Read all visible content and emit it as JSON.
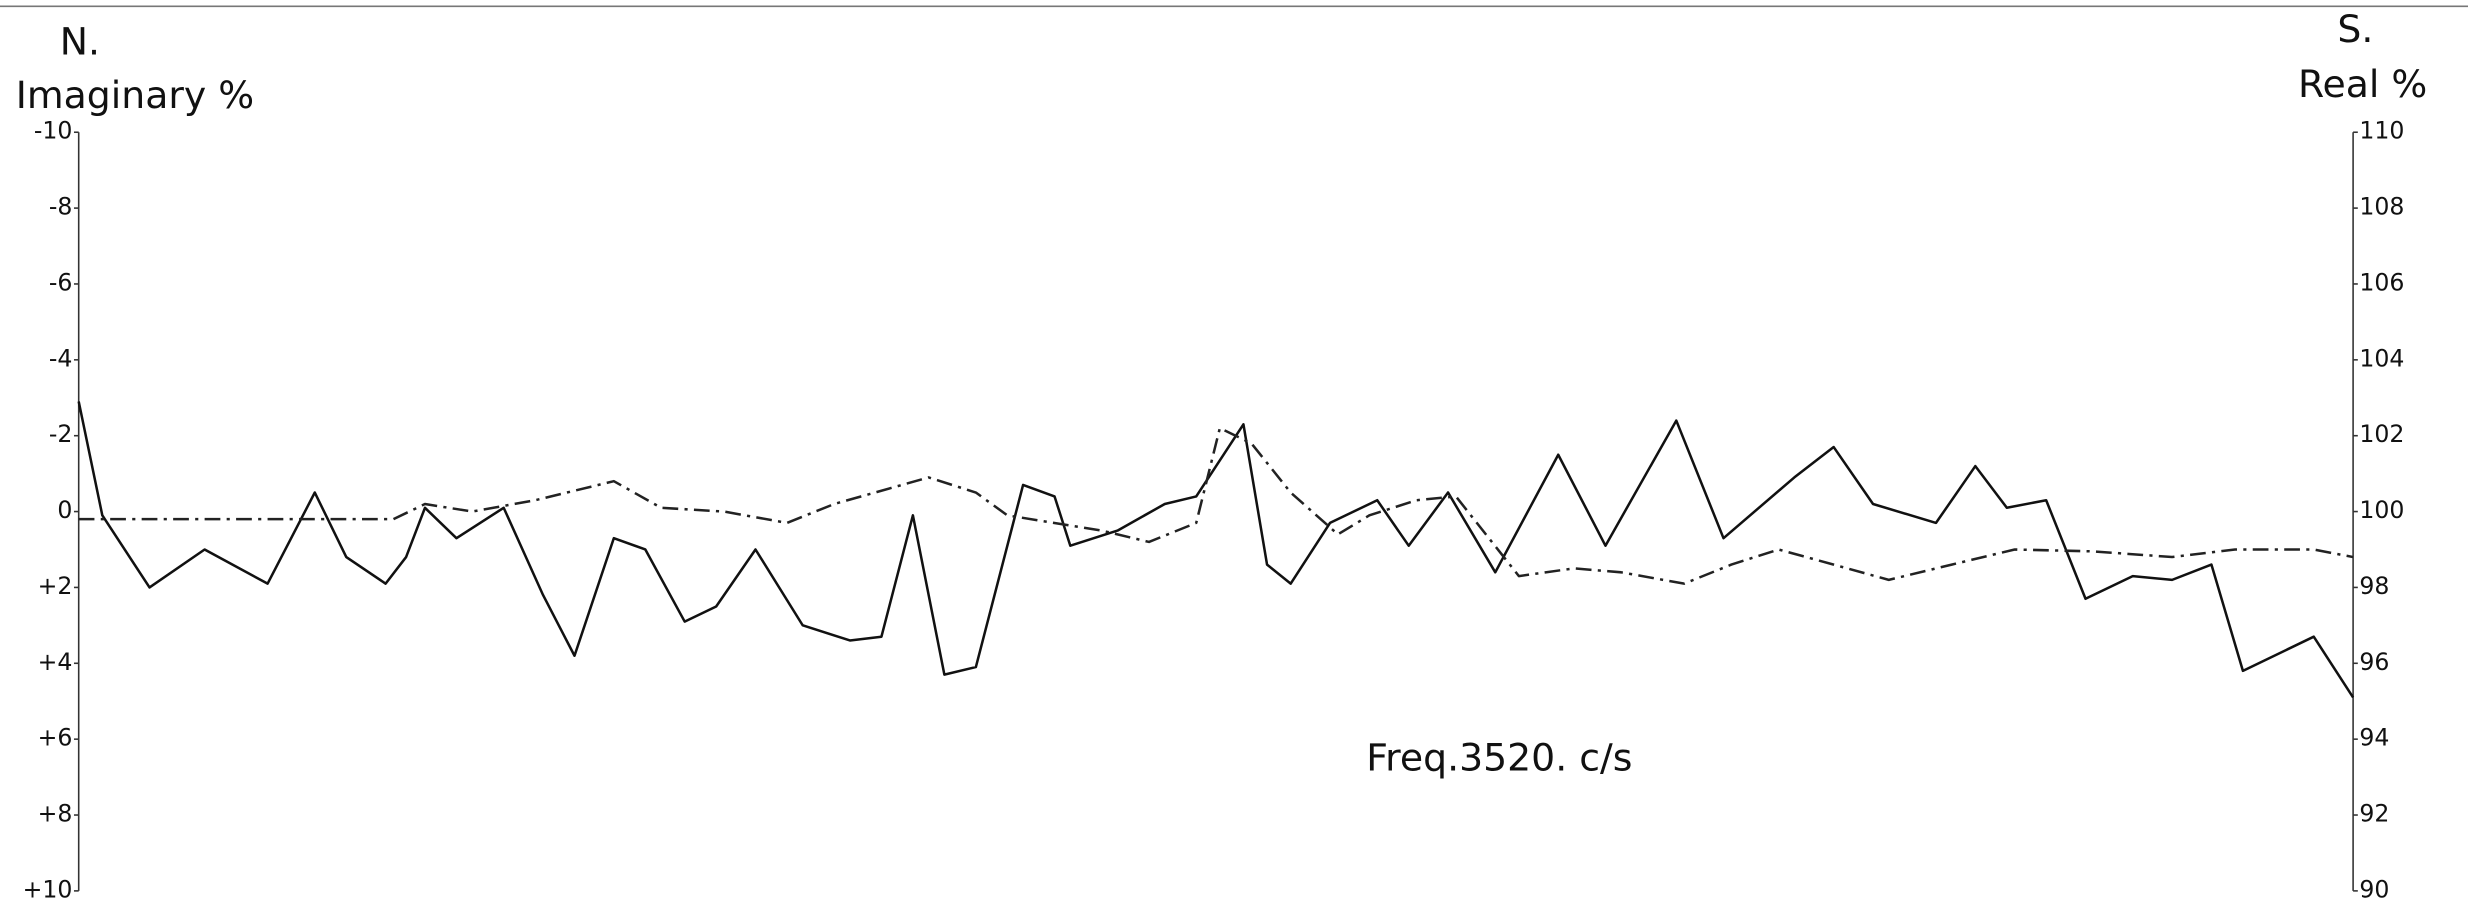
{
  "chart_data": {
    "type": "line",
    "labels": {
      "left_top": "N.",
      "right_top": "S."
    },
    "ylabel": "Imaginary %",
    "y2label": "Real %",
    "annotation": "Freq.3520. c/s",
    "xlim": [
      0,
      1445
    ],
    "ylim": [
      -10,
      10
    ],
    "yinverted": true,
    "yticks": [
      -10,
      -8,
      -6,
      -4,
      -2,
      0,
      {
        "value": 2,
        "label": "+2"
      },
      {
        "value": 4,
        "label": "+4"
      },
      {
        "value": 6,
        "label": "+6"
      },
      {
        "value": 8,
        "label": "+8"
      },
      {
        "value": 10,
        "label": "+10"
      }
    ],
    "y2lim": [
      90,
      110
    ],
    "y2ticks": [
      90,
      92,
      94,
      96,
      98,
      100,
      102,
      104,
      106,
      108,
      110
    ],
    "grid": false,
    "series": [
      {
        "color": "#111111",
        "linestyle": "solid",
        "x": [
          0,
          15,
          45,
          80,
          120,
          150,
          170,
          195,
          208,
          220,
          240,
          270,
          295,
          315,
          340,
          360,
          385,
          405,
          430,
          460,
          490,
          510,
          530,
          550,
          570,
          600,
          620,
          630,
          660,
          690,
          710,
          740,
          755,
          770,
          795,
          825,
          845,
          870,
          900,
          940,
          970,
          1015,
          1045,
          1090,
          1115,
          1140,
          1180,
          1205,
          1225,
          1250,
          1275,
          1305,
          1330,
          1355,
          1375,
          1420,
          1445
        ],
        "values": [
          -2.9,
          0.1,
          2.0,
          1.0,
          1.9,
          -0.5,
          1.2,
          1.9,
          1.2,
          -0.1,
          0.7,
          -0.1,
          2.2,
          3.8,
          0.7,
          1.0,
          2.9,
          2.5,
          1.0,
          3.0,
          3.4,
          3.3,
          0.1,
          4.3,
          4.1,
          -0.7,
          -0.4,
          0.9,
          0.5,
          -0.2,
          -0.4,
          -2.3,
          1.4,
          1.9,
          0.3,
          -0.3,
          0.9,
          -0.5,
          1.6,
          -1.5,
          0.9,
          -2.4,
          0.7,
          -0.9,
          -1.7,
          -0.2,
          0.3,
          -1.2,
          -0.1,
          -0.3,
          2.3,
          1.7,
          1.8,
          1.4,
          4.2,
          3.3,
          4.9
        ]
      },
      {
        "color": "#222222",
        "linestyle": "dashdot",
        "axis": "y2",
        "x": [
          0,
          200,
          220,
          250,
          290,
          340,
          370,
          410,
          450,
          480,
          540,
          570,
          590,
          650,
          680,
          710,
          725,
          745,
          770,
          800,
          820,
          850,
          875,
          915,
          950,
          980,
          1020,
          1050,
          1080,
          1115,
          1150,
          1190,
          1230,
          1280,
          1330,
          1370,
          1420,
          1445
        ],
        "values": [
          99.8,
          99.8,
          100.2,
          100,
          100.3,
          100.8,
          100.1,
          100,
          99.7,
          100.2,
          100.9,
          100.5,
          99.9,
          99.5,
          99.2,
          99.7,
          102.2,
          101.8,
          100.5,
          99.4,
          99.9,
          100.3,
          100.4,
          98.3,
          98.5,
          98.4,
          98.1,
          98.6,
          99.0,
          98.6,
          98.2,
          98.6,
          99.0,
          98.95,
          98.8,
          99.0,
          99.0,
          98.8
        ]
      }
    ]
  }
}
